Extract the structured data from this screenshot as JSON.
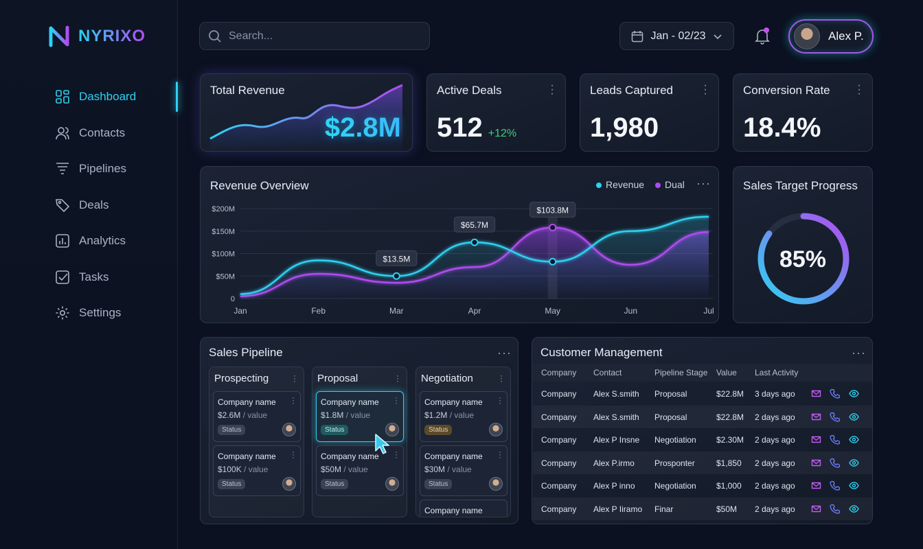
{
  "brand": {
    "name": "NYRIXO"
  },
  "sidebar": {
    "items": [
      {
        "label": "Dashboard",
        "icon": "dashboard-icon",
        "active": true
      },
      {
        "label": "Contacts",
        "icon": "contacts-icon"
      },
      {
        "label": "Pipelines",
        "icon": "funnel-icon"
      },
      {
        "label": "Deals",
        "icon": "tag-icon"
      },
      {
        "label": "Analytics",
        "icon": "analytics-icon"
      },
      {
        "label": "Tasks",
        "icon": "tasks-icon"
      },
      {
        "label": "Settings",
        "icon": "gear-icon"
      }
    ]
  },
  "header": {
    "search_placeholder": "Search...",
    "date_range": "Jan - 02/23",
    "user_name": "Alex P."
  },
  "kpis": {
    "revenue": {
      "title": "Total Revenue",
      "value": "$2.8M"
    },
    "deals": {
      "title": "Active Deals",
      "value": "512",
      "delta": "+12%"
    },
    "leads": {
      "title": "Leads Captured",
      "value": "1,980"
    },
    "conversion": {
      "title": "Conversion Rate",
      "value": "18.4%"
    }
  },
  "overview": {
    "title": "Revenue Overview",
    "legend": [
      "Revenue",
      "Dual"
    ],
    "tooltips": [
      "$13.5M",
      "$65.7M",
      "$103.8M"
    ]
  },
  "chart_data": {
    "type": "line",
    "x": [
      "Jan",
      "Feb",
      "Mar",
      "Apr",
      "May",
      "Jun",
      "Jul"
    ],
    "ylim": [
      0,
      200
    ],
    "yticks": [
      "0",
      "$50M",
      "$100M",
      "$150M",
      "$200M"
    ],
    "series": [
      {
        "name": "Revenue",
        "values": [
          10,
          85,
          50,
          125,
          82,
          150,
          182
        ]
      },
      {
        "name": "Dual",
        "values": [
          5,
          55,
          35,
          70,
          158,
          75,
          148
        ]
      }
    ],
    "colors": {
      "Revenue": "#2fd1f1",
      "Dual": "#b04cf0"
    }
  },
  "target": {
    "title": "Sales Target Progress",
    "label": "85%",
    "fraction": 0.85
  },
  "pipeline": {
    "title": "Sales Pipeline",
    "columns": [
      {
        "title": "Prospecting",
        "deals": [
          {
            "name": "Company name",
            "value": "$2.6M",
            "unit": "/ value",
            "status": "Status"
          },
          {
            "name": "Company name",
            "value": "$100K",
            "unit": "/ value",
            "status": "Status"
          }
        ]
      },
      {
        "title": "Proposal",
        "deals": [
          {
            "name": "Company name",
            "value": "$1.8M",
            "unit": "/ value",
            "status": "Status"
          },
          {
            "name": "Company name",
            "value": "$50M",
            "unit": "/ value",
            "status": "Status"
          }
        ]
      },
      {
        "title": "Negotiation",
        "deals": [
          {
            "name": "Company name",
            "value": "$1.2M",
            "unit": "/ value",
            "status": "Status"
          },
          {
            "name": "Company name",
            "value": "$30M",
            "unit": "/ value",
            "status": "Status"
          },
          {
            "name": "Company name"
          }
        ]
      }
    ]
  },
  "customers": {
    "title": "Customer Management",
    "headers": [
      "Company",
      "Contact",
      "Pipeline Stage",
      "Value",
      "Last Activity"
    ],
    "rows": [
      [
        "Company",
        "Alex S.smith",
        "Proposal",
        "$22.8M",
        "3 days ago"
      ],
      [
        "Company",
        "Alex S.smith",
        "Proposal",
        "$22.8M",
        "2 days ago"
      ],
      [
        "Company",
        "Alex P Insne",
        "Negotiation",
        "$2.30M",
        "2 days ago"
      ],
      [
        "Company",
        "Alex P.irmo",
        "Prosponter",
        "$1,850",
        "2 days ago"
      ],
      [
        "Company",
        "Alex P inno",
        "Negotiation",
        "$1,000",
        "2 days ago"
      ],
      [
        "Company",
        "Alex P Iiramo",
        "Finar",
        "$50M",
        "2 days ago"
      ]
    ]
  }
}
